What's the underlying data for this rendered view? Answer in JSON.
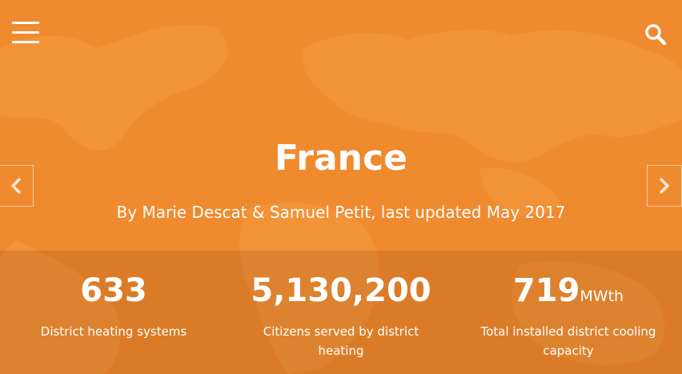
{
  "header": {
    "menu_icon": "hamburger-menu-icon",
    "search_icon": "search-icon"
  },
  "hero": {
    "title": "France",
    "byline": "By Marie Descat & Samuel Petit, last updated May 2017",
    "prev_icon": "chevron-left-icon",
    "next_icon": "chevron-right-icon"
  },
  "stats": [
    {
      "value": "633",
      "unit": "",
      "label": "District heating systems"
    },
    {
      "value": "5,130,200",
      "unit": "",
      "label": "Citizens served by district heating"
    },
    {
      "value": "719",
      "unit": "MWth",
      "label": "Total installed district cooling capacity"
    }
  ],
  "colors": {
    "background": "#f08a2e",
    "text": "#ffffff"
  }
}
